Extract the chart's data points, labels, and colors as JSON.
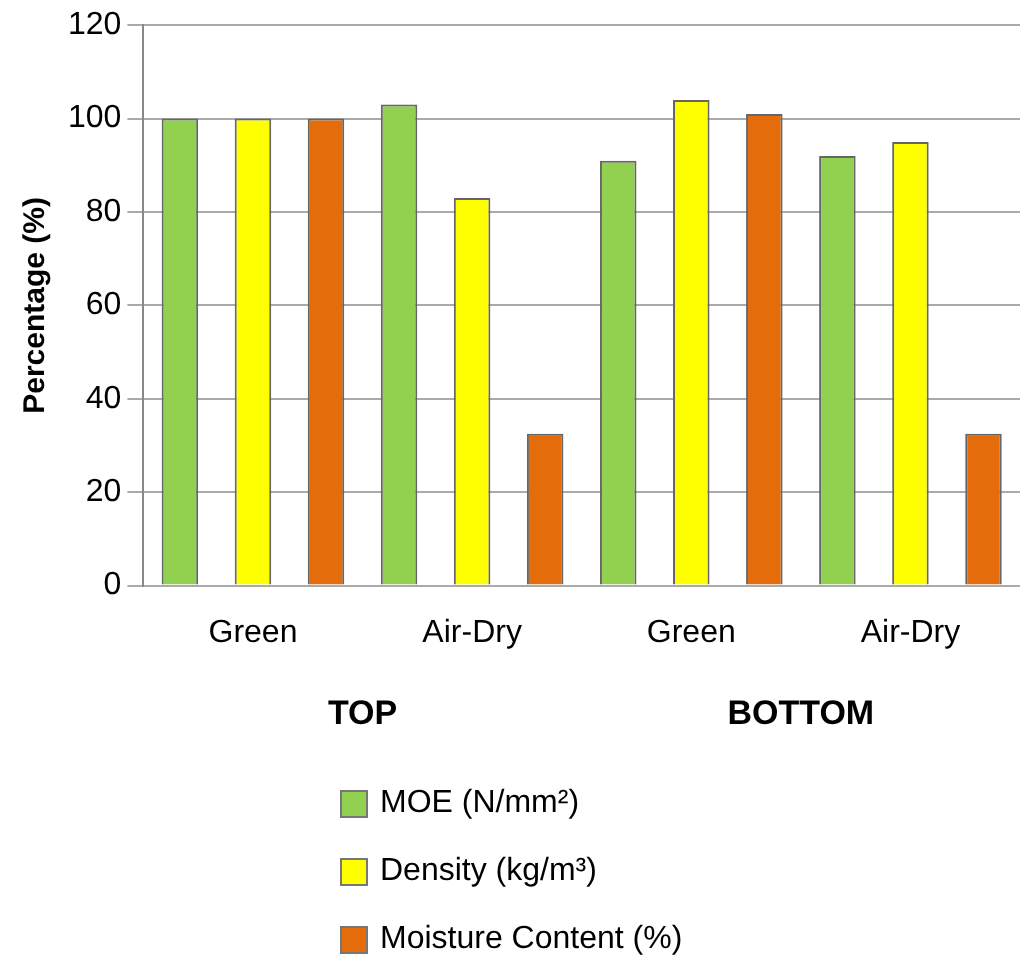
{
  "chart_data": {
    "type": "bar",
    "ylabel": "Percentage (%)",
    "categories": [
      "Green",
      "Air-Dry",
      "Green",
      "Air-Dry"
    ],
    "annotations": [
      "TOP",
      "BOTTOM"
    ],
    "series": [
      {
        "name": "MOE (N/mm²)",
        "color": "#92d050",
        "values": [
          100,
          103,
          91,
          92
        ]
      },
      {
        "name": "Density (kg/m³)",
        "color": "#ffff00",
        "values": [
          100,
          83,
          104,
          95
        ]
      },
      {
        "name": "Moisture Content (%)",
        "color": "#e46c0a",
        "values": [
          100,
          32.5,
          101,
          32.5
        ]
      }
    ],
    "ylim": [
      0,
      120
    ],
    "yticks": [
      0,
      20,
      40,
      60,
      80,
      100,
      120
    ],
    "grid": "y",
    "legend": "bottom"
  }
}
